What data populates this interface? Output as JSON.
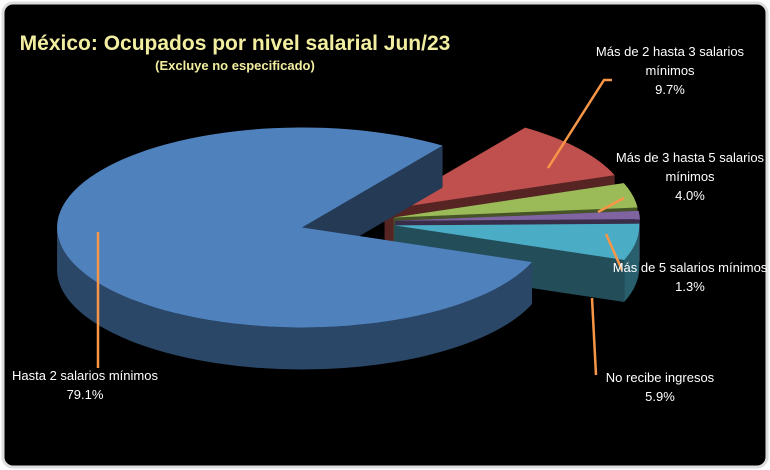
{
  "chart_data": {
    "type": "pie",
    "title": "México: Ocupados por nivel salarial Jun/23",
    "subtitle": "(Excluye no especificado)",
    "categories": [
      "Hasta 2 salarios mínimos",
      "Más de 2 hasta 3 salarios mínimos",
      "Más de 3 hasta 5 salarios mínimos",
      "Más de 5 salarios mínimos",
      "No recibe ingresos"
    ],
    "values": [
      79.1,
      9.7,
      4.0,
      1.3,
      5.9
    ],
    "value_labels": [
      "79.1%",
      "9.7%",
      "4.0%",
      "1.3%",
      "5.9%"
    ],
    "colors": [
      "#4f81bd",
      "#c0504d",
      "#9bbb59",
      "#8064a2",
      "#4bacc6"
    ]
  }
}
